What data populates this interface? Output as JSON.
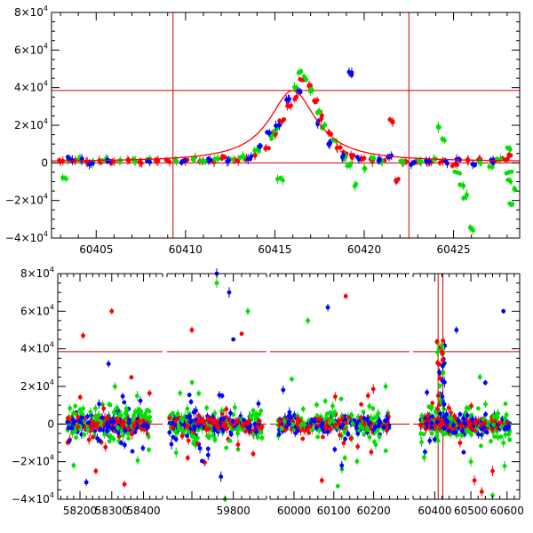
{
  "colors": {
    "red": "#ff0000",
    "green": "#00e000",
    "blue": "#0000ff",
    "axis": "#000000",
    "guide": "#cc0000"
  },
  "chart_data": [
    {
      "type": "scatter",
      "panel": "top",
      "title": "",
      "xlabel": "",
      "ylabel": "",
      "xlim": [
        60402.5,
        60428.7
      ],
      "ylim": [
        -40000,
        80000
      ],
      "x_ticks": [
        60405,
        60410,
        60415,
        60420,
        60425
      ],
      "x_tick_labels": [
        "60405",
        "60410",
        "60415",
        "60420",
        "60425"
      ],
      "y_ticks": [
        -40000,
        -20000,
        0,
        20000,
        40000,
        60000,
        80000
      ],
      "y_tick_labels": [
        {
          "mant": "−4×10",
          "exp": "4"
        },
        {
          "mant": "−2×10",
          "exp": "4"
        },
        {
          "mant": "0",
          "exp": ""
        },
        {
          "mant": "2×10",
          "exp": "4"
        },
        {
          "mant": "4×10",
          "exp": "4"
        },
        {
          "mant": "6×10",
          "exp": "4"
        },
        {
          "mant": "8×10",
          "exp": "4"
        }
      ],
      "hlines": [
        38500,
        0
      ],
      "vlines": [
        60409.3,
        60422.5
      ],
      "model_curve": {
        "t0": 60416.0,
        "peak": 38500,
        "tE": 1.6,
        "base": 500
      },
      "series": [
        {
          "color": "red",
          "points": [
            [
              60403.0,
              500
            ],
            [
              60403.8,
              1200
            ],
            [
              60404.5,
              300
            ],
            [
              60405.2,
              800
            ],
            [
              60406.0,
              600
            ],
            [
              60406.8,
              1500
            ],
            [
              60407.5,
              200
            ],
            [
              60408.4,
              900
            ],
            [
              60409.0,
              1200
            ],
            [
              60410.0,
              800
            ],
            [
              60410.8,
              1000
            ],
            [
              60411.5,
              900
            ],
            [
              60412.2,
              3000
            ],
            [
              60412.8,
              1500
            ],
            [
              60413.3,
              2500
            ],
            [
              60413.9,
              4000
            ],
            [
              60414.5,
              8000
            ],
            [
              60415.0,
              15000
            ],
            [
              60415.4,
              22000
            ],
            [
              60415.8,
              30000
            ],
            [
              60416.2,
              35000
            ],
            [
              60416.5,
              44000
            ],
            [
              60416.9,
              41000
            ],
            [
              60417.2,
              33000
            ],
            [
              60417.6,
              24000
            ],
            [
              60418.0,
              16000
            ],
            [
              60418.5,
              8000
            ],
            [
              60419.0,
              5000
            ],
            [
              60419.4,
              4000
            ],
            [
              60420.0,
              2500
            ],
            [
              60420.5,
              1500
            ],
            [
              60421.0,
              1000
            ],
            [
              60421.6,
              22000
            ],
            [
              60421.8,
              -10000
            ],
            [
              60422.3,
              800
            ],
            [
              60423.0,
              500
            ],
            [
              60423.6,
              300
            ],
            [
              60424.4,
              800
            ],
            [
              60425.1,
              -500
            ],
            [
              60425.8,
              1200
            ],
            [
              60426.5,
              2000
            ],
            [
              60427.2,
              800
            ],
            [
              60427.9,
              1500
            ],
            [
              60428.2,
              4000
            ]
          ]
        },
        {
          "color": "green",
          "points": [
            [
              60403.2,
              -8000
            ],
            [
              60403.4,
              1500
            ],
            [
              60404.0,
              2000
            ],
            [
              60404.8,
              -200
            ],
            [
              60405.5,
              1500
            ],
            [
              60406.3,
              800
            ],
            [
              60407.2,
              1200
            ],
            [
              60408.0,
              1800
            ],
            [
              60409.5,
              1000
            ],
            [
              60410.4,
              2000
            ],
            [
              60411.0,
              1200
            ],
            [
              60411.8,
              2500
            ],
            [
              60412.5,
              2000
            ],
            [
              60413.2,
              3500
            ],
            [
              60414.0,
              7000
            ],
            [
              60414.8,
              14000
            ],
            [
              60415.1,
              18000
            ],
            [
              60415.3,
              -8000
            ],
            [
              60416.2,
              40000
            ],
            [
              60416.4,
              48000
            ],
            [
              60416.7,
              45000
            ],
            [
              60417.0,
              38000
            ],
            [
              60417.4,
              27000
            ],
            [
              60417.8,
              20000
            ],
            [
              60418.3,
              12000
            ],
            [
              60418.8,
              2000
            ],
            [
              60419.2,
              -1500
            ],
            [
              60419.5,
              -12000
            ],
            [
              60420.0,
              -3000
            ],
            [
              60420.5,
              2500
            ],
            [
              60421.0,
              500
            ],
            [
              60422.2,
              200
            ],
            [
              60423.1,
              1000
            ],
            [
              60423.9,
              2000
            ],
            [
              60424.2,
              19000
            ],
            [
              60424.5,
              12000
            ],
            [
              60425.2,
              -5000
            ],
            [
              60425.5,
              -12000
            ],
            [
              60425.7,
              -18000
            ],
            [
              60426.0,
              -35000
            ],
            [
              60426.4,
              600
            ],
            [
              60427.0,
              -2000
            ],
            [
              60427.5,
              1500
            ],
            [
              60428.0,
              8000
            ],
            [
              60428.1,
              -5000
            ],
            [
              60428.2,
              -10000
            ],
            [
              60428.3,
              -22000
            ],
            [
              60428.4,
              -14000
            ]
          ]
        },
        {
          "color": "blue",
          "points": [
            [
              60403.5,
              2000
            ],
            [
              60404.2,
              1800
            ],
            [
              60404.7,
              -500
            ],
            [
              60405.8,
              1000
            ],
            [
              60407.9,
              1500
            ],
            [
              60409.8,
              800
            ],
            [
              60411.4,
              1500
            ],
            [
              60412.4,
              1000
            ],
            [
              60413.5,
              2000
            ],
            [
              60414.2,
              9000
            ],
            [
              60414.7,
              16000
            ],
            [
              60415.2,
              20000
            ],
            [
              60415.8,
              34000
            ],
            [
              60416.3,
              38000
            ],
            [
              60417.4,
              21000
            ],
            [
              60418.0,
              10000
            ],
            [
              60418.8,
              3500
            ],
            [
              60419.3,
              48000
            ],
            [
              60419.7,
              2000
            ],
            [
              60420.8,
              1200
            ],
            [
              60421.4,
              3000
            ],
            [
              60422.8,
              200
            ],
            [
              60423.5,
              1000
            ],
            [
              60424.6,
              500
            ],
            [
              60425.3,
              2000
            ],
            [
              60426.2,
              -1000
            ],
            [
              60427.1,
              1500
            ]
          ]
        }
      ]
    },
    {
      "type": "scatter",
      "panel": "bottom",
      "title": "",
      "xlabel": "",
      "ylabel": "",
      "segments": [
        {
          "xlim": [
            58130,
            58460
          ],
          "x_ticks": [
            58200,
            58300,
            58400
          ],
          "x_tick_labels": [
            "58200",
            "58300",
            "58400"
          ],
          "data_x": [
            58160,
            58420
          ]
        },
        {
          "xlim": [
            59640,
            59880
          ],
          "x_ticks": [
            59800
          ],
          "x_tick_labels": [
            "59800"
          ],
          "data_x": [
            59645,
            59870
          ]
        },
        {
          "xlim": [
            59940,
            60290
          ],
          "x_ticks": [
            60000,
            60100,
            60200
          ],
          "x_tick_labels": [
            "60000",
            "60100",
            "60200"
          ],
          "data_x": [
            59960,
            60240
          ]
        },
        {
          "xlim": [
            60340,
            60635
          ],
          "x_ticks": [
            60400,
            60500,
            60600
          ],
          "x_tick_labels": [
            "60400",
            "60500",
            "60600"
          ],
          "data_x": [
            60360,
            60610
          ]
        }
      ],
      "ylim": [
        -40000,
        80000
      ],
      "y_ticks": [
        -40000,
        -20000,
        0,
        20000,
        40000,
        60000,
        80000
      ],
      "y_tick_labels": [
        {
          "mant": "−4×10",
          "exp": "4"
        },
        {
          "mant": "−2×10",
          "exp": "4"
        },
        {
          "mant": "0",
          "exp": ""
        },
        {
          "mant": "2×10",
          "exp": "4"
        },
        {
          "mant": "4×10",
          "exp": "4"
        },
        {
          "mant": "6×10",
          "exp": "4"
        },
        {
          "mant": "8×10",
          "exp": "4"
        }
      ],
      "hlines": [
        38500,
        0
      ],
      "vlines": [
        60409.3,
        60422.5
      ],
      "highlight_segment": 3,
      "highlight_x": [
        60405,
        60428
      ],
      "series": [
        {
          "color": "blue",
          "outliers": [
            [
              58220,
              -31000
            ],
            [
              58290,
              32000
            ],
            [
              58330,
              -10000
            ],
            [
              59760,
              80000
            ],
            [
              59790,
              70000
            ],
            [
              59800,
              45000
            ],
            [
              59770,
              -28000
            ],
            [
              60085,
              62000
            ],
            [
              60120,
              -22000
            ],
            [
              60200,
              -3000
            ],
            [
              60460,
              50000
            ],
            [
              60480,
              -15000
            ],
            [
              60540,
              22000
            ],
            [
              60590,
              60000
            ]
          ]
        },
        {
          "color": "red",
          "outliers": [
            [
              58210,
              47000
            ],
            [
              58300,
              60000
            ],
            [
              58250,
              -25000
            ],
            [
              58340,
              -32000
            ],
            [
              59700,
              50000
            ],
            [
              59690,
              -18000
            ],
            [
              59820,
              48000
            ],
            [
              60130,
              68000
            ],
            [
              60070,
              -30000
            ],
            [
              60160,
              -12000
            ],
            [
              60470,
              -10000
            ],
            [
              60510,
              -30000
            ],
            [
              60560,
              -25000
            ],
            [
              60530,
              -36000
            ]
          ]
        },
        {
          "color": "green",
          "outliers": [
            [
              58180,
              -22000
            ],
            [
              58310,
              20000
            ],
            [
              58380,
              15000
            ],
            [
              59760,
              75000
            ],
            [
              59835,
              60000
            ],
            [
              59780,
              -40000
            ],
            [
              60035,
              55000
            ],
            [
              60110,
              -33000
            ],
            [
              60230,
              20000
            ],
            [
              60500,
              -20000
            ],
            [
              60560,
              -38000
            ],
            [
              60590,
              -10000
            ],
            [
              60525,
              25000
            ]
          ]
        }
      ]
    }
  ]
}
